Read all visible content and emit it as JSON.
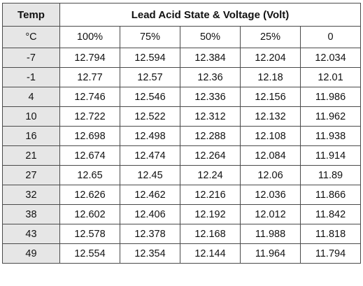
{
  "table": {
    "temp_header": "Temp",
    "title": "Lead Acid State & Voltage (Volt)",
    "unit": "°C",
    "states": [
      "100%",
      "75%",
      "50%",
      "25%",
      "0"
    ],
    "rows": [
      {
        "temp": "-7",
        "values": [
          "12.794",
          "12.594",
          "12.384",
          "12.204",
          "12.034"
        ]
      },
      {
        "temp": "-1",
        "values": [
          "12.77",
          "12.57",
          "12.36",
          "12.18",
          "12.01"
        ]
      },
      {
        "temp": "4",
        "values": [
          "12.746",
          "12.546",
          "12.336",
          "12.156",
          "11.986"
        ]
      },
      {
        "temp": "10",
        "values": [
          "12.722",
          "12.522",
          "12.312",
          "12.132",
          "11.962"
        ]
      },
      {
        "temp": "16",
        "values": [
          "12.698",
          "12.498",
          "12.288",
          "12.108",
          "11.938"
        ]
      },
      {
        "temp": "21",
        "values": [
          "12.674",
          "12.474",
          "12.264",
          "12.084",
          "11.914"
        ]
      },
      {
        "temp": "27",
        "values": [
          "12.65",
          "12.45",
          "12.24",
          "12.06",
          "11.89"
        ]
      },
      {
        "temp": "32",
        "values": [
          "12.626",
          "12.462",
          "12.216",
          "12.036",
          "11.866"
        ]
      },
      {
        "temp": "38",
        "values": [
          "12.602",
          "12.406",
          "12.192",
          "12.012",
          "11.842"
        ]
      },
      {
        "temp": "43",
        "values": [
          "12.578",
          "12.378",
          "12.168",
          "11.988",
          "11.818"
        ]
      },
      {
        "temp": "49",
        "values": [
          "12.554",
          "12.354",
          "12.144",
          "11.964",
          "11.794"
        ]
      }
    ]
  }
}
